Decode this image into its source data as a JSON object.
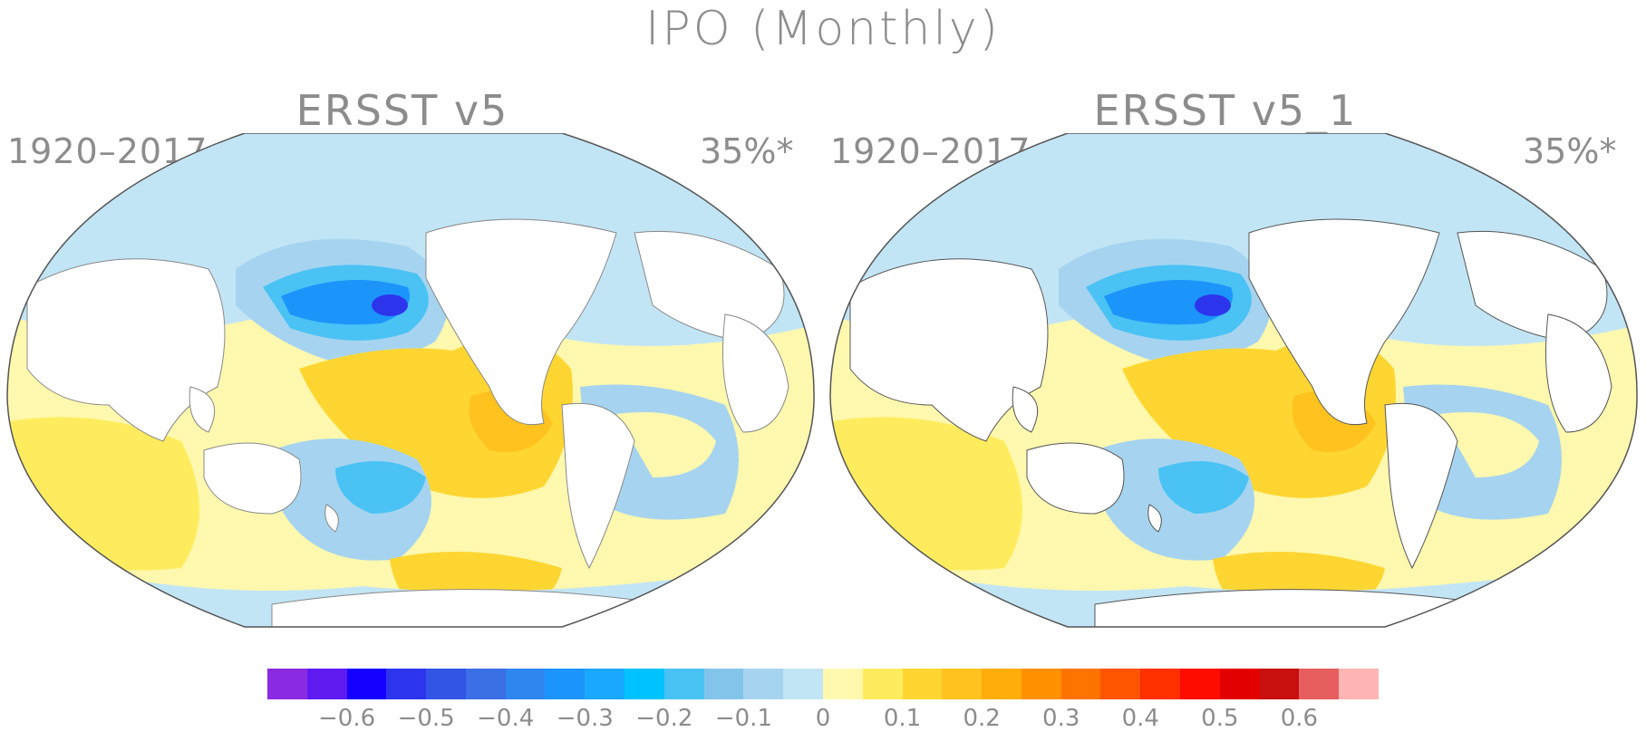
{
  "title": "IPO (Monthly)",
  "panels": [
    {
      "title": "ERSST v5",
      "period": "1920–2017",
      "percent": "35%*"
    },
    {
      "title": "ERSST v5_1",
      "period": "1920–2017",
      "percent": "35%*"
    }
  ],
  "colorbar": {
    "colors": [
      "#8a2be2",
      "#5d1bf0",
      "#1500ff",
      "#2d35ec",
      "#3355e6",
      "#3a6fe6",
      "#2f86ef",
      "#1c95fb",
      "#1aa8ff",
      "#00c2ff",
      "#4ac2f4",
      "#83c5ea",
      "#a6d4f0",
      "#c2e5f5",
      "#fff8ae",
      "#ffec5e",
      "#ffd631",
      "#ffc21f",
      "#ffad0a",
      "#ff9000",
      "#ff7400",
      "#ff5400",
      "#ff2f00",
      "#ff0c00",
      "#e30000",
      "#c81010",
      "#e65e5e",
      "#ffb4b4"
    ],
    "tick_labels": [
      "−0.6",
      "−0.5",
      "−0.4",
      "−0.3",
      "−0.2",
      "−0.1",
      "0",
      "0.1",
      "0.2",
      "0.3",
      "0.4",
      "0.5",
      "0.6"
    ],
    "tick_values": [
      -0.6,
      -0.5,
      -0.4,
      -0.3,
      -0.2,
      -0.1,
      0,
      0.1,
      0.2,
      0.3,
      0.4,
      0.5,
      0.6
    ],
    "range": [
      -0.7,
      0.7
    ]
  }
}
